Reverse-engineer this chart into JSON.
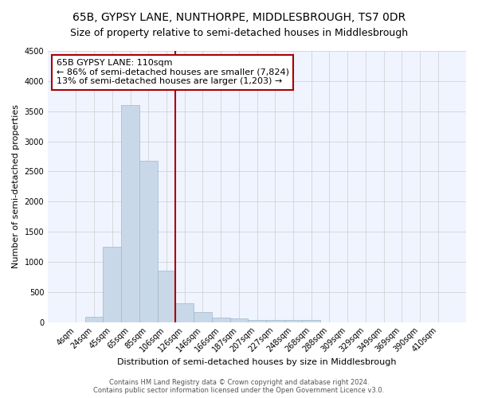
{
  "title": "65B, GYPSY LANE, NUNTHORPE, MIDDLESBROUGH, TS7 0DR",
  "subtitle": "Size of property relative to semi-detached houses in Middlesbrough",
  "xlabel": "Distribution of semi-detached houses by size in Middlesbrough",
  "ylabel": "Number of semi-detached properties",
  "categories": [
    "4sqm",
    "24sqm",
    "45sqm",
    "65sqm",
    "85sqm",
    "106sqm",
    "126sqm",
    "146sqm",
    "166sqm",
    "187sqm",
    "207sqm",
    "227sqm",
    "248sqm",
    "268sqm",
    "288sqm",
    "309sqm",
    "329sqm",
    "349sqm",
    "369sqm",
    "390sqm",
    "410sqm"
  ],
  "values": [
    0,
    85,
    1250,
    3600,
    2680,
    850,
    310,
    160,
    80,
    55,
    35,
    30,
    30,
    30,
    0,
    0,
    0,
    0,
    0,
    0,
    0
  ],
  "bar_color": "#c8d8e8",
  "bar_edge_color": "#a0b8cc",
  "property_line_x": 5.5,
  "property_line_color": "#aa0000",
  "annotation_line1": "65B GYPSY LANE: 110sqm",
  "annotation_line2": "← 86% of semi-detached houses are smaller (7,824)",
  "annotation_line3": "13% of semi-detached houses are larger (1,203) →",
  "annotation_box_color": "#ffffff",
  "annotation_box_edge_color": "#aa0000",
  "ylim": [
    0,
    4500
  ],
  "yticks": [
    0,
    500,
    1000,
    1500,
    2000,
    2500,
    3000,
    3500,
    4000,
    4500
  ],
  "footer_line1": "Contains HM Land Registry data © Crown copyright and database right 2024.",
  "footer_line2": "Contains public sector information licensed under the Open Government Licence v3.0.",
  "title_fontsize": 10,
  "subtitle_fontsize": 9,
  "axis_label_fontsize": 8,
  "tick_fontsize": 7,
  "annotation_fontsize": 8,
  "footer_fontsize": 6
}
